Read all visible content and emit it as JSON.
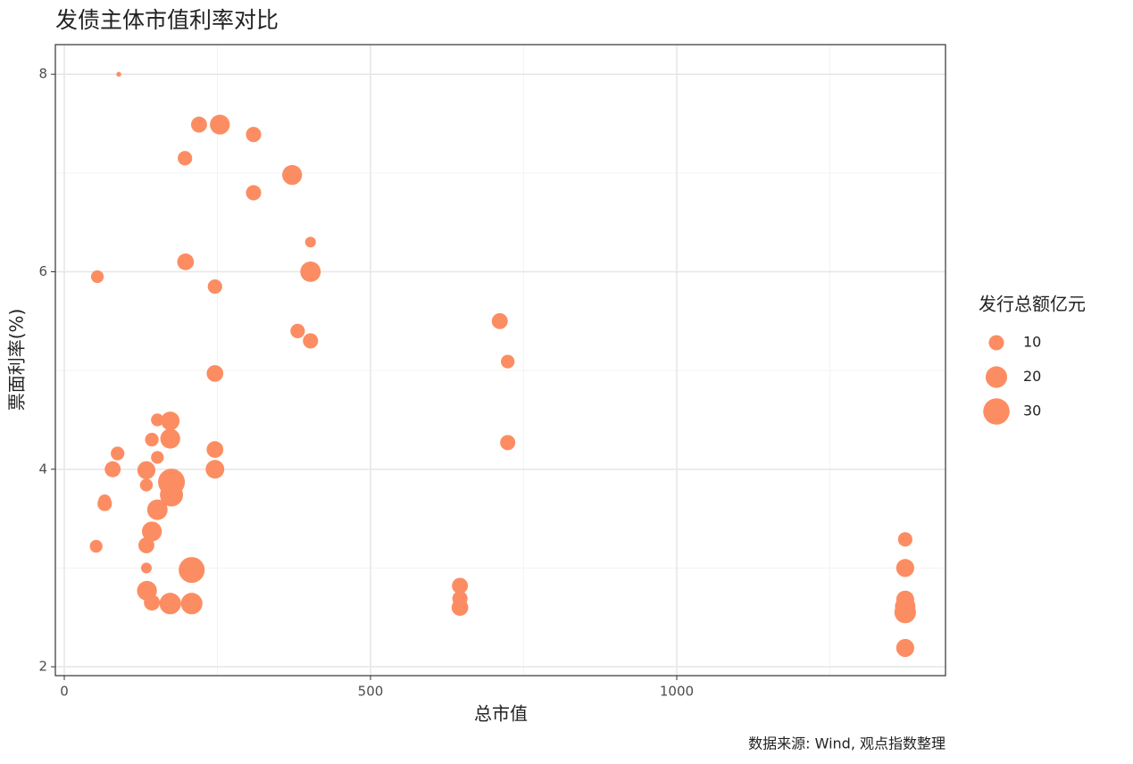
{
  "chart_data": {
    "type": "scatter",
    "title": "发债主体市值利率对比",
    "x_label": "总市值",
    "y_label": "票面利率(%)",
    "size_legend_title": "发行总额亿元",
    "size_legend": [
      10,
      20,
      30
    ],
    "caption": "数据来源: Wind, 观点指数整理",
    "xlim": [
      -14.6,
      1438.8
    ],
    "ylim": [
      1.91,
      8.3
    ],
    "xticks": [
      0,
      500,
      1000
    ],
    "yticks": [
      2,
      4,
      6,
      8
    ],
    "x_minor_ticks": [
      250,
      750,
      1250
    ],
    "y_minor_ticks": [
      3,
      5,
      7
    ],
    "grid": true,
    "series": [
      {
        "color": "#fc8d62",
        "x": [
          89,
          220,
          254,
          309,
          197,
          372,
          309,
          402,
          54,
          198,
          402,
          246,
          711,
          381,
          402,
          724,
          246,
          152,
          173,
          173,
          143,
          724,
          87,
          246,
          152,
          79,
          134,
          246,
          134,
          175,
          175,
          66,
          66,
          152,
          143,
          52,
          134,
          134,
          208,
          135,
          143,
          173,
          208,
          646,
          646,
          646,
          1373,
          1373,
          1373,
          1373,
          1373,
          1373
        ],
        "y": [
          8.0,
          7.49,
          7.49,
          7.39,
          7.15,
          6.98,
          6.8,
          6.3,
          5.95,
          6.1,
          6.0,
          5.85,
          5.5,
          5.4,
          5.3,
          5.09,
          4.97,
          4.5,
          4.49,
          4.31,
          4.3,
          4.27,
          4.16,
          4.2,
          4.12,
          4.0,
          3.99,
          4.0,
          3.84,
          3.87,
          3.74,
          3.68,
          3.65,
          3.59,
          3.37,
          3.22,
          3.23,
          3.0,
          2.98,
          2.77,
          2.65,
          2.64,
          2.64,
          2.82,
          2.69,
          2.6,
          3.29,
          3.0,
          2.68,
          2.61,
          2.55,
          2.19
        ],
        "size": [
          1,
          11,
          17,
          10,
          9,
          17,
          10,
          5,
          7,
          12,
          18,
          9,
          11,
          9,
          10,
          8,
          12,
          7,
          15,
          17,
          8,
          10,
          8,
          12,
          7,
          11,
          14,
          15,
          7,
          31,
          23,
          7,
          9,
          18,
          17,
          7,
          11,
          5,
          29,
          17,
          11,
          20,
          20,
          11,
          10,
          12,
          9,
          14,
          14,
          18,
          20,
          14
        ]
      }
    ]
  }
}
